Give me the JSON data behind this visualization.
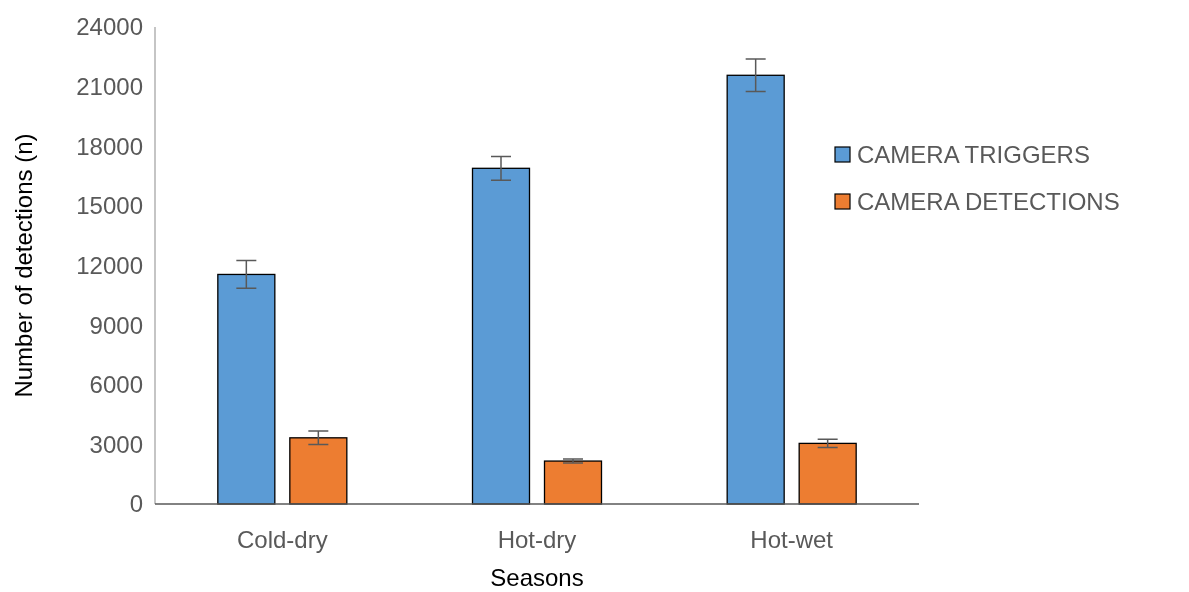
{
  "chart_data": {
    "type": "bar",
    "xlabel": "Seasons",
    "ylabel": "Number of detections (n)",
    "categories": [
      "Cold-dry",
      "Hot-dry",
      "Hot-wet"
    ],
    "series": [
      {
        "name": "CAMERA TRIGGERS",
        "color": "#5b9bd5",
        "values": [
          11550,
          16890,
          21570
        ],
        "errors": [
          700,
          600,
          820
        ]
      },
      {
        "name": "CAMERA DETECTIONS",
        "color": "#ed7d31",
        "values": [
          3330,
          2160,
          3050
        ],
        "errors": [
          340,
          100,
          210
        ]
      }
    ],
    "ylim": [
      0,
      24000
    ],
    "yticks": [
      0,
      3000,
      6000,
      9000,
      12000,
      15000,
      18000,
      21000,
      24000
    ],
    "grid": false,
    "legend": "right"
  }
}
